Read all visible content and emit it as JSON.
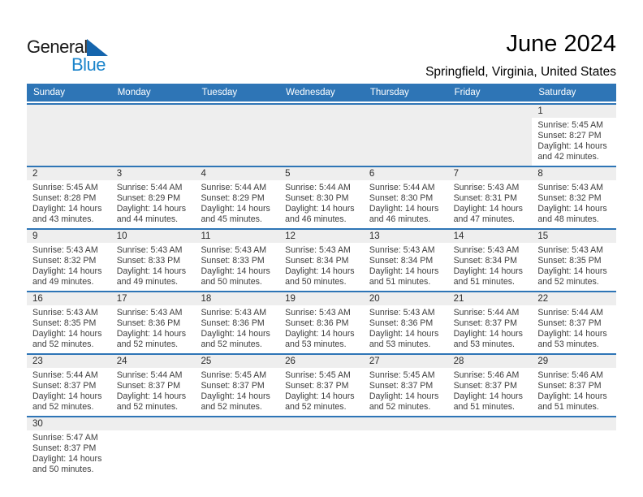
{
  "logo": {
    "general": "General",
    "blue": "Blue"
  },
  "header": {
    "title": "June 2024",
    "location": "Springfield, Virginia, United States"
  },
  "colors": {
    "header_blue": "#2e75b6",
    "line_blue": "#2e75b6",
    "strip_gray": "#eeeeee",
    "logo_blue": "#1b84cb",
    "flag_blue": "#1565ad"
  },
  "calendar": {
    "weekdays": [
      "Sunday",
      "Monday",
      "Tuesday",
      "Wednesday",
      "Thursday",
      "Friday",
      "Saturday"
    ],
    "weeks": [
      [
        null,
        null,
        null,
        null,
        null,
        null,
        {
          "date": "1",
          "sunrise": "Sunrise: 5:45 AM",
          "sunset": "Sunset: 8:27 PM",
          "daylight1": "Daylight: 14 hours",
          "daylight2": "and 42 minutes."
        }
      ],
      [
        {
          "date": "2",
          "sunrise": "Sunrise: 5:45 AM",
          "sunset": "Sunset: 8:28 PM",
          "daylight1": "Daylight: 14 hours",
          "daylight2": "and 43 minutes."
        },
        {
          "date": "3",
          "sunrise": "Sunrise: 5:44 AM",
          "sunset": "Sunset: 8:29 PM",
          "daylight1": "Daylight: 14 hours",
          "daylight2": "and 44 minutes."
        },
        {
          "date": "4",
          "sunrise": "Sunrise: 5:44 AM",
          "sunset": "Sunset: 8:29 PM",
          "daylight1": "Daylight: 14 hours",
          "daylight2": "and 45 minutes."
        },
        {
          "date": "5",
          "sunrise": "Sunrise: 5:44 AM",
          "sunset": "Sunset: 8:30 PM",
          "daylight1": "Daylight: 14 hours",
          "daylight2": "and 46 minutes."
        },
        {
          "date": "6",
          "sunrise": "Sunrise: 5:44 AM",
          "sunset": "Sunset: 8:30 PM",
          "daylight1": "Daylight: 14 hours",
          "daylight2": "and 46 minutes."
        },
        {
          "date": "7",
          "sunrise": "Sunrise: 5:43 AM",
          "sunset": "Sunset: 8:31 PM",
          "daylight1": "Daylight: 14 hours",
          "daylight2": "and 47 minutes."
        },
        {
          "date": "8",
          "sunrise": "Sunrise: 5:43 AM",
          "sunset": "Sunset: 8:32 PM",
          "daylight1": "Daylight: 14 hours",
          "daylight2": "and 48 minutes."
        }
      ],
      [
        {
          "date": "9",
          "sunrise": "Sunrise: 5:43 AM",
          "sunset": "Sunset: 8:32 PM",
          "daylight1": "Daylight: 14 hours",
          "daylight2": "and 49 minutes."
        },
        {
          "date": "10",
          "sunrise": "Sunrise: 5:43 AM",
          "sunset": "Sunset: 8:33 PM",
          "daylight1": "Daylight: 14 hours",
          "daylight2": "and 49 minutes."
        },
        {
          "date": "11",
          "sunrise": "Sunrise: 5:43 AM",
          "sunset": "Sunset: 8:33 PM",
          "daylight1": "Daylight: 14 hours",
          "daylight2": "and 50 minutes."
        },
        {
          "date": "12",
          "sunrise": "Sunrise: 5:43 AM",
          "sunset": "Sunset: 8:34 PM",
          "daylight1": "Daylight: 14 hours",
          "daylight2": "and 50 minutes."
        },
        {
          "date": "13",
          "sunrise": "Sunrise: 5:43 AM",
          "sunset": "Sunset: 8:34 PM",
          "daylight1": "Daylight: 14 hours",
          "daylight2": "and 51 minutes."
        },
        {
          "date": "14",
          "sunrise": "Sunrise: 5:43 AM",
          "sunset": "Sunset: 8:34 PM",
          "daylight1": "Daylight: 14 hours",
          "daylight2": "and 51 minutes."
        },
        {
          "date": "15",
          "sunrise": "Sunrise: 5:43 AM",
          "sunset": "Sunset: 8:35 PM",
          "daylight1": "Daylight: 14 hours",
          "daylight2": "and 52 minutes."
        }
      ],
      [
        {
          "date": "16",
          "sunrise": "Sunrise: 5:43 AM",
          "sunset": "Sunset: 8:35 PM",
          "daylight1": "Daylight: 14 hours",
          "daylight2": "and 52 minutes."
        },
        {
          "date": "17",
          "sunrise": "Sunrise: 5:43 AM",
          "sunset": "Sunset: 8:36 PM",
          "daylight1": "Daylight: 14 hours",
          "daylight2": "and 52 minutes."
        },
        {
          "date": "18",
          "sunrise": "Sunrise: 5:43 AM",
          "sunset": "Sunset: 8:36 PM",
          "daylight1": "Daylight: 14 hours",
          "daylight2": "and 52 minutes."
        },
        {
          "date": "19",
          "sunrise": "Sunrise: 5:43 AM",
          "sunset": "Sunset: 8:36 PM",
          "daylight1": "Daylight: 14 hours",
          "daylight2": "and 53 minutes."
        },
        {
          "date": "20",
          "sunrise": "Sunrise: 5:43 AM",
          "sunset": "Sunset: 8:36 PM",
          "daylight1": "Daylight: 14 hours",
          "daylight2": "and 53 minutes."
        },
        {
          "date": "21",
          "sunrise": "Sunrise: 5:44 AM",
          "sunset": "Sunset: 8:37 PM",
          "daylight1": "Daylight: 14 hours",
          "daylight2": "and 53 minutes."
        },
        {
          "date": "22",
          "sunrise": "Sunrise: 5:44 AM",
          "sunset": "Sunset: 8:37 PM",
          "daylight1": "Daylight: 14 hours",
          "daylight2": "and 53 minutes."
        }
      ],
      [
        {
          "date": "23",
          "sunrise": "Sunrise: 5:44 AM",
          "sunset": "Sunset: 8:37 PM",
          "daylight1": "Daylight: 14 hours",
          "daylight2": "and 52 minutes."
        },
        {
          "date": "24",
          "sunrise": "Sunrise: 5:44 AM",
          "sunset": "Sunset: 8:37 PM",
          "daylight1": "Daylight: 14 hours",
          "daylight2": "and 52 minutes."
        },
        {
          "date": "25",
          "sunrise": "Sunrise: 5:45 AM",
          "sunset": "Sunset: 8:37 PM",
          "daylight1": "Daylight: 14 hours",
          "daylight2": "and 52 minutes."
        },
        {
          "date": "26",
          "sunrise": "Sunrise: 5:45 AM",
          "sunset": "Sunset: 8:37 PM",
          "daylight1": "Daylight: 14 hours",
          "daylight2": "and 52 minutes."
        },
        {
          "date": "27",
          "sunrise": "Sunrise: 5:45 AM",
          "sunset": "Sunset: 8:37 PM",
          "daylight1": "Daylight: 14 hours",
          "daylight2": "and 52 minutes."
        },
        {
          "date": "28",
          "sunrise": "Sunrise: 5:46 AM",
          "sunset": "Sunset: 8:37 PM",
          "daylight1": "Daylight: 14 hours",
          "daylight2": "and 51 minutes."
        },
        {
          "date": "29",
          "sunrise": "Sunrise: 5:46 AM",
          "sunset": "Sunset: 8:37 PM",
          "daylight1": "Daylight: 14 hours",
          "daylight2": "and 51 minutes."
        }
      ],
      [
        {
          "date": "30",
          "sunrise": "Sunrise: 5:47 AM",
          "sunset": "Sunset: 8:37 PM",
          "daylight1": "Daylight: 14 hours",
          "daylight2": "and 50 minutes."
        },
        null,
        null,
        null,
        null,
        null,
        null
      ]
    ]
  }
}
